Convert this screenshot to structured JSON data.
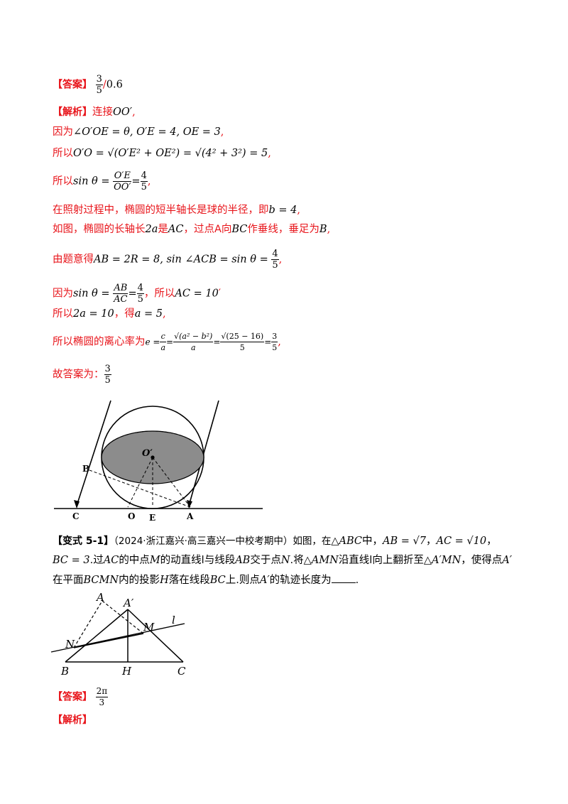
{
  "answer1": {
    "tag": "【答案】",
    "frac_num": "3",
    "frac_den": "5",
    "slash": "/",
    "alt": "0.6"
  },
  "analysis1": {
    "tag": "【解析】",
    "l1_text": "连接",
    "l1_math": "OO′",
    "l1_end": ",",
    "l2_text": "因为",
    "l2_math": "∠O′OE = θ, O′E = 4, OE = 3",
    "l2_end": ",",
    "l3_text": "所以",
    "l3_math": "O′O = √(O′E² + OE²) = √(4² + 3²) = 5",
    "l3_end": ",",
    "l4_text": "所以",
    "l4_math_a": "sin θ =",
    "l4_num": "O′E",
    "l4_den": "OO′",
    "l4_eq": "=",
    "l4_num2": "4",
    "l4_den2": "5",
    "l4_end": ",",
    "l5_text": "在照射过程中，椭圆的短半轴长是球的半径，即",
    "l5_math": "b = 4",
    "l5_end": ",",
    "l6_a": "如图，椭圆的长轴长",
    "l6_m1": "2a",
    "l6_b": "是",
    "l6_m2": "AC",
    "l6_c": "，过点A向",
    "l6_m3": "BC",
    "l6_d": "作垂线，垂足为",
    "l6_m4": "B",
    "l6_end": ",",
    "l7_text": "由题意得",
    "l7_math": "AB = 2R = 8, sin ∠ACB = sin θ =",
    "l7_num": "4",
    "l7_den": "5",
    "l7_end": ",",
    "l8_a": "因为",
    "l8_math": "sin θ =",
    "l8_num": "AB",
    "l8_den": "AC",
    "l8_eq": "=",
    "l8_num2": "4",
    "l8_den2": "5",
    "l8_b": "，所以",
    "l8_m2": "AC = 10",
    "l8_end": "′",
    "l9_a": "所以",
    "l9_m1": "2a = 10",
    "l9_b": "，得",
    "l9_m2": "a = 5",
    "l9_end": ",",
    "l10_a": "所以椭圆的离心率为",
    "l10_m1": "e =",
    "l10_f1n": "c",
    "l10_f1d": "a",
    "l10_eq1": "=",
    "l10_f2n": "√(a² − b²)",
    "l10_f2d": "a",
    "l10_eq2": "=",
    "l10_f3n": "√(25 − 16)",
    "l10_f3d": "5",
    "l10_eq3": "=",
    "l10_f4n": "3",
    "l10_f4d": "5",
    "l10_end": ",",
    "l11_text": "故答案为：",
    "l11_num": "3",
    "l11_den": "5"
  },
  "figure1": {
    "labels": {
      "O_prime": "O′",
      "B": "B",
      "C": "C",
      "O": "O",
      "E": "E",
      "A": "A"
    }
  },
  "variant": {
    "tag": "【变式 5-1】",
    "source": "（2024·浙江嘉兴·高三嘉兴一中校考期中）如图，在",
    "m_tri": "△ABC",
    "t1": "中，",
    "m_ab": "AB = √7",
    "t2": "，",
    "m_ac": "AC = √10",
    "t3": "，",
    "m_bc": "BC = 3",
    "t4": ".过",
    "m_ac2": "AC",
    "t5": "的中点",
    "m_M": "M",
    "t6": "的动直线l与线段",
    "m_ab2": "AB",
    "t7": "交于点",
    "m_N": "N",
    "t8": ".将",
    "m_amn": "△AMN",
    "t9": "沿直线l向上翻折至",
    "m_amn2": "△A′MN",
    "t10": "，使得点",
    "m_ap": "A′",
    "t11": "在平面",
    "m_bcmn": "BCMN",
    "t12": "内的投影",
    "m_H": "H",
    "t13": "落在线段",
    "m_bc2": "BC",
    "t14": "上.则点",
    "m_ap2": "A′",
    "t15": "的轨迹长度为",
    "t16": "."
  },
  "figure2": {
    "labels": {
      "A": "A",
      "A_prime": "A′",
      "M": "M",
      "l": "l",
      "N": "N",
      "B": "B",
      "H": "H",
      "C": "C"
    }
  },
  "answer2": {
    "tag": "【答案】",
    "frac_num": "2π",
    "frac_den": "3"
  },
  "analysis2": {
    "tag": "【解析】"
  }
}
